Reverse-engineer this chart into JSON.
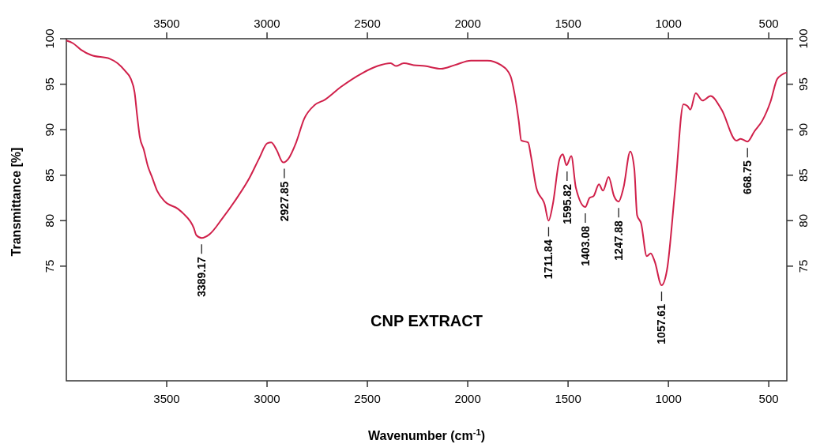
{
  "chart_data": {
    "type": "line",
    "title": "CNP EXTRACT",
    "xlabel": "Wavenumber (cm$^{-1}$)",
    "ylabel": "Transmittance [%]",
    "xlim": [
      4000,
      410
    ],
    "xticks": [
      3500,
      3000,
      2500,
      2000,
      1500,
      1000,
      500
    ],
    "x2lim": [
      4000,
      410
    ],
    "x2ticks": [
      3500,
      3000,
      2500,
      2000,
      1500,
      1000,
      500
    ],
    "ylim": [
      62.4,
      100
    ],
    "yticks": [
      75,
      80,
      85,
      90,
      95,
      100
    ],
    "y2lim": [
      62.4,
      100
    ],
    "y2ticks": [
      75,
      80,
      85,
      90,
      95,
      100
    ],
    "grid": false,
    "annotations": [
      {
        "text": "3389.17",
        "x": 3326,
        "y": 78.1
      },
      {
        "text": "2927.85",
        "x": 2914,
        "y": 86.4
      },
      {
        "text": "1711.84",
        "x": 1597,
        "y": 80.0
      },
      {
        "text": "1595.82",
        "x": 1505,
        "y": 86.1
      },
      {
        "text": "1403.08",
        "x": 1414,
        "y": 81.5
      },
      {
        "text": "1247.88",
        "x": 1248,
        "y": 82.1
      },
      {
        "text": "1057.61",
        "x": 1034,
        "y": 72.9
      },
      {
        "text": "668.75",
        "x": 606,
        "y": 88.7
      }
    ],
    "series": [
      {
        "color": "#d0204a",
        "x": [
          4000,
          3967,
          3928,
          3876,
          3784,
          3745,
          3705,
          3679,
          3660,
          3647,
          3634,
          3614,
          3594,
          3575,
          3548,
          3509,
          3444,
          3418,
          3365,
          3352,
          3326,
          3287,
          3221,
          3156,
          3090,
          3038,
          2999,
          2979,
          2953,
          2920,
          2894,
          2855,
          2815,
          2763,
          2711,
          2632,
          2527,
          2449,
          2384,
          2358,
          2318,
          2269,
          2214,
          2133,
          2065,
          1984,
          1902,
          1834,
          1787,
          1767,
          1746,
          1733,
          1699,
          1685,
          1658,
          1617,
          1597,
          1576,
          1542,
          1526,
          1508,
          1484,
          1461,
          1414,
          1393,
          1373,
          1346,
          1326,
          1298,
          1271,
          1248,
          1224,
          1190,
          1170,
          1156,
          1136,
          1108,
          1088,
          1068,
          1034,
          1007,
          966,
          925,
          905,
          891,
          864,
          830,
          790,
          735,
          661,
          640,
          606,
          572,
          532,
          491,
          457,
          410
        ],
        "values": [
          99.8,
          99.5,
          98.8,
          98.2,
          97.8,
          97.3,
          96.4,
          95.6,
          94.1,
          91.5,
          89.2,
          87.8,
          86.0,
          84.9,
          83.3,
          82.1,
          81.3,
          80.8,
          79.2,
          78.4,
          78.1,
          78.5,
          80.3,
          82.3,
          84.6,
          86.9,
          88.5,
          88.6,
          87.8,
          86.4,
          86.8,
          88.6,
          91.2,
          92.7,
          93.3,
          94.7,
          96.2,
          97.0,
          97.3,
          97.0,
          97.3,
          97.1,
          97.0,
          96.7,
          97.1,
          97.6,
          97.6,
          97.1,
          95.9,
          94.0,
          91.0,
          88.8,
          88.6,
          87.1,
          83.6,
          81.8,
          80.0,
          81.8,
          86.8,
          87.3,
          86.1,
          87.1,
          83.6,
          81.5,
          82.5,
          82.7,
          84.0,
          83.3,
          84.8,
          82.7,
          82.1,
          83.6,
          87.6,
          85.7,
          80.6,
          79.7,
          76.1,
          76.4,
          75.5,
          72.9,
          74.6,
          83.6,
          92.8,
          92.6,
          92.2,
          94.0,
          93.2,
          93.7,
          92.2,
          88.8,
          89.0,
          88.7,
          89.8,
          91.0,
          93.1,
          95.6,
          96.3
        ]
      }
    ]
  }
}
